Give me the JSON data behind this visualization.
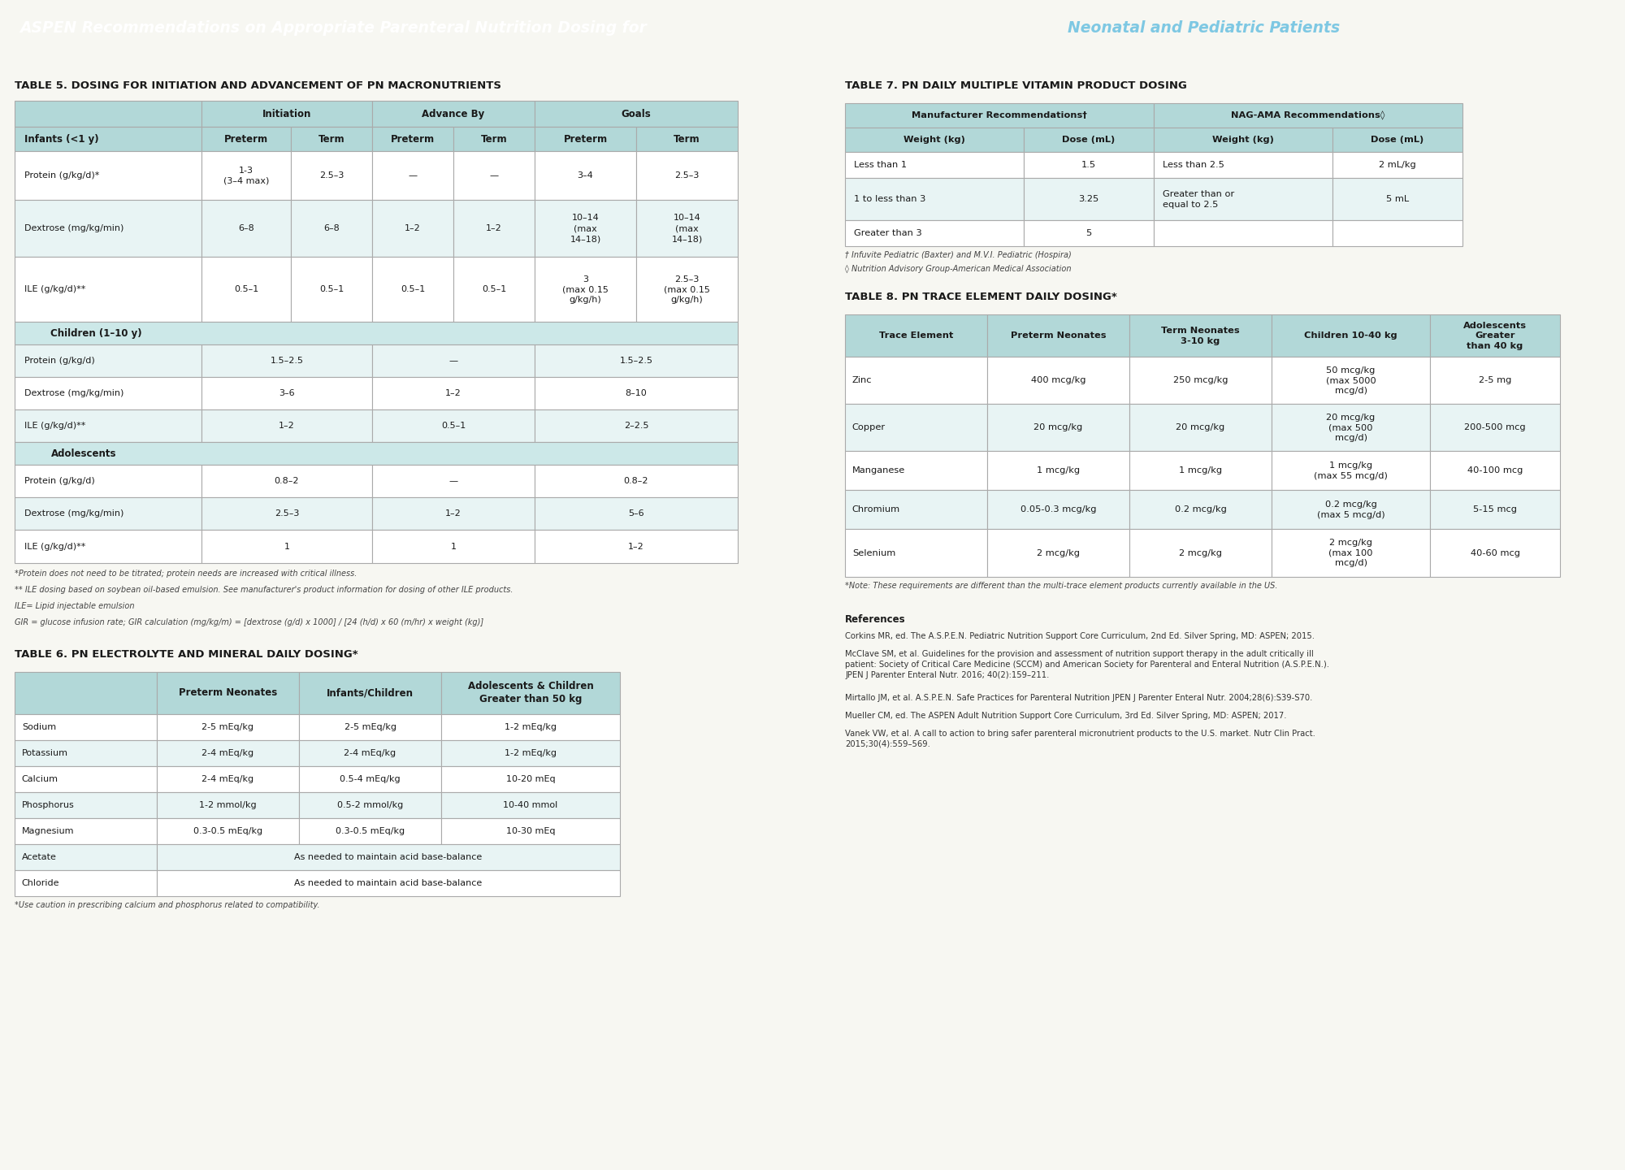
{
  "title_part1": "ASPEN Recommendations on Appropriate Parenteral Nutrition Dosing for ",
  "title_part2": "Neonatal and Pediatric Patients",
  "title_bg": "#1a6faf",
  "title_text_color1": "#ffffff",
  "title_text_color2": "#7ec8e3",
  "bg_color": "#f7f7f2",
  "table_header_bg": "#b2d8d8",
  "table_row_bg_white": "#ffffff",
  "table_row_bg_tint": "#e8f4f4",
  "table_section_bg": "#cce8e8",
  "border_color": "#aaaaaa",
  "text_color": "#1a1a1a",
  "table5_title": "TABLE 5. DOSING FOR INITIATION AND ADVANCEMENT OF PN MACRONUTRIENTS",
  "table6_title": "TABLE 6. PN ELECTROLYTE AND MINERAL DAILY DOSING*",
  "table7_title": "TABLE 7. PN DAILY MULTIPLE VITAMIN PRODUCT DOSING",
  "table8_title": "TABLE 8. PN TRACE ELEMENT DAILY DOSING*",
  "t5_footnotes": [
    "*Protein does not need to be titrated; protein needs are increased with critical illness.",
    "** ILE dosing based on soybean oil-based emulsion. See manufacturer's product information for dosing of other ILE products.",
    "ILE= Lipid injectable emulsion",
    "GIR = glucose infusion rate; GIR calculation (mg/kg/m) = [dextrose (g/d) x 1000] / [24 (h/d) x 60 (m/hr) x weight (kg)]"
  ],
  "t6_footnote": "*Use caution in prescribing calcium and phosphorus related to compatibility.",
  "t7_footnotes": [
    "† Infuvite Pediatric (Baxter) and M.V.I. Pediatric (Hospira)",
    "◊ Nutrition Advisory Group-American Medical Association"
  ],
  "t8_footnote": "*Note: These requirements are different than the multi-trace element products currently available in the US.",
  "ref_title": "References",
  "ref_items": [
    "Corkins MR, ed. The A.S.P.E.N. Pediatric Nutrition Support Core Curriculum, 2nd Ed. Silver Spring, MD: ASPEN; 2015.",
    "McClave SM, et al. Guidelines for the provision and assessment of nutrition support therapy in the adult critically ill\npatient: Society of Critical Care Medicine (SCCM) and American Society for Parenteral and Enteral Nutrition (A.S.P.E.N.).\nJPEN J Parenter Enteral Nutr. 2016; 40(2):159–211.",
    "Mirtallo JM, et al. A.S.P.E.N. Safe Practices for Parenteral Nutrition JPEN J Parenter Enteral Nutr. 2004;28(6):S39-S70.",
    "Mueller CM, ed. The ASPEN Adult Nutrition Support Core Curriculum, 3rd Ed. Silver Spring, MD: ASPEN; 2017.",
    "Vanek VW, et al. A call to action to bring safer parenteral micronutrient products to the U.S. market. Nutr Clin Pract.\n2015;30(4):559–569."
  ]
}
